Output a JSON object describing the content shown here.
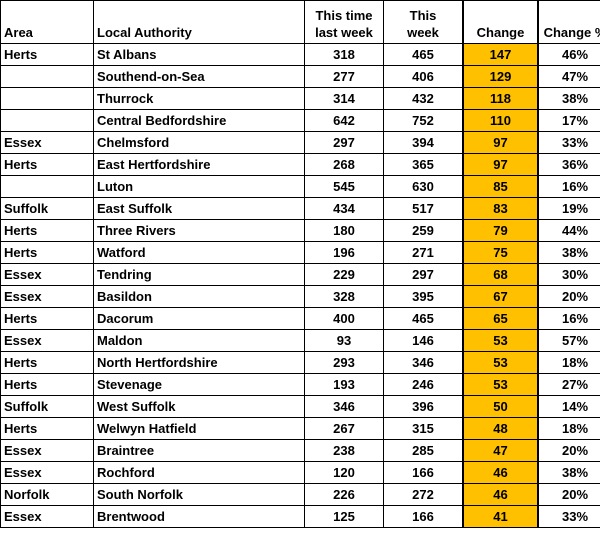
{
  "colors": {
    "change_highlight": "#FFC000",
    "grid": "#000000"
  },
  "headers": {
    "area": "Area",
    "local_authority": "Local Authority",
    "last_week_line1": "This time",
    "last_week_line2": "last week",
    "this_week_line1": "This",
    "this_week_line2": "week",
    "change": "Change",
    "change_pct": "Change %"
  },
  "rows": [
    {
      "area": "Herts",
      "la": "St Albans",
      "last": "318",
      "this": "465",
      "change": "147",
      "pct": "46%"
    },
    {
      "area": "",
      "la": "Southend-on-Sea",
      "last": "277",
      "this": "406",
      "change": "129",
      "pct": "47%"
    },
    {
      "area": "",
      "la": "Thurrock",
      "last": "314",
      "this": "432",
      "change": "118",
      "pct": "38%"
    },
    {
      "area": "",
      "la": "Central Bedfordshire",
      "last": "642",
      "this": "752",
      "change": "110",
      "pct": "17%"
    },
    {
      "area": "Essex",
      "la": "Chelmsford",
      "last": "297",
      "this": "394",
      "change": "97",
      "pct": "33%"
    },
    {
      "area": "Herts",
      "la": "East Hertfordshire",
      "last": "268",
      "this": "365",
      "change": "97",
      "pct": "36%"
    },
    {
      "area": "",
      "la": "Luton",
      "last": "545",
      "this": "630",
      "change": "85",
      "pct": "16%"
    },
    {
      "area": "Suffolk",
      "la": "East Suffolk",
      "last": "434",
      "this": "517",
      "change": "83",
      "pct": "19%"
    },
    {
      "area": "Herts",
      "la": "Three Rivers",
      "last": "180",
      "this": "259",
      "change": "79",
      "pct": "44%"
    },
    {
      "area": "Herts",
      "la": "Watford",
      "last": "196",
      "this": "271",
      "change": "75",
      "pct": "38%"
    },
    {
      "area": "Essex",
      "la": "Tendring",
      "last": "229",
      "this": "297",
      "change": "68",
      "pct": "30%"
    },
    {
      "area": "Essex",
      "la": "Basildon",
      "last": "328",
      "this": "395",
      "change": "67",
      "pct": "20%"
    },
    {
      "area": "Herts",
      "la": "Dacorum",
      "last": "400",
      "this": "465",
      "change": "65",
      "pct": "16%"
    },
    {
      "area": "Essex",
      "la": "Maldon",
      "last": "93",
      "this": "146",
      "change": "53",
      "pct": "57%"
    },
    {
      "area": "Herts",
      "la": "North Hertfordshire",
      "last": "293",
      "this": "346",
      "change": "53",
      "pct": "18%"
    },
    {
      "area": "Herts",
      "la": "Stevenage",
      "last": "193",
      "this": "246",
      "change": "53",
      "pct": "27%"
    },
    {
      "area": "Suffolk",
      "la": "West Suffolk",
      "last": "346",
      "this": "396",
      "change": "50",
      "pct": "14%"
    },
    {
      "area": "Herts",
      "la": "Welwyn Hatfield",
      "last": "267",
      "this": "315",
      "change": "48",
      "pct": "18%"
    },
    {
      "area": "Essex",
      "la": "Braintree",
      "last": "238",
      "this": "285",
      "change": "47",
      "pct": "20%"
    },
    {
      "area": "Essex",
      "la": "Rochford",
      "last": "120",
      "this": "166",
      "change": "46",
      "pct": "38%"
    },
    {
      "area": "Norfolk",
      "la": "South Norfolk",
      "last": "226",
      "this": "272",
      "change": "46",
      "pct": "20%"
    },
    {
      "area": "Essex",
      "la": "Brentwood",
      "last": "125",
      "this": "166",
      "change": "41",
      "pct": "33%"
    }
  ]
}
